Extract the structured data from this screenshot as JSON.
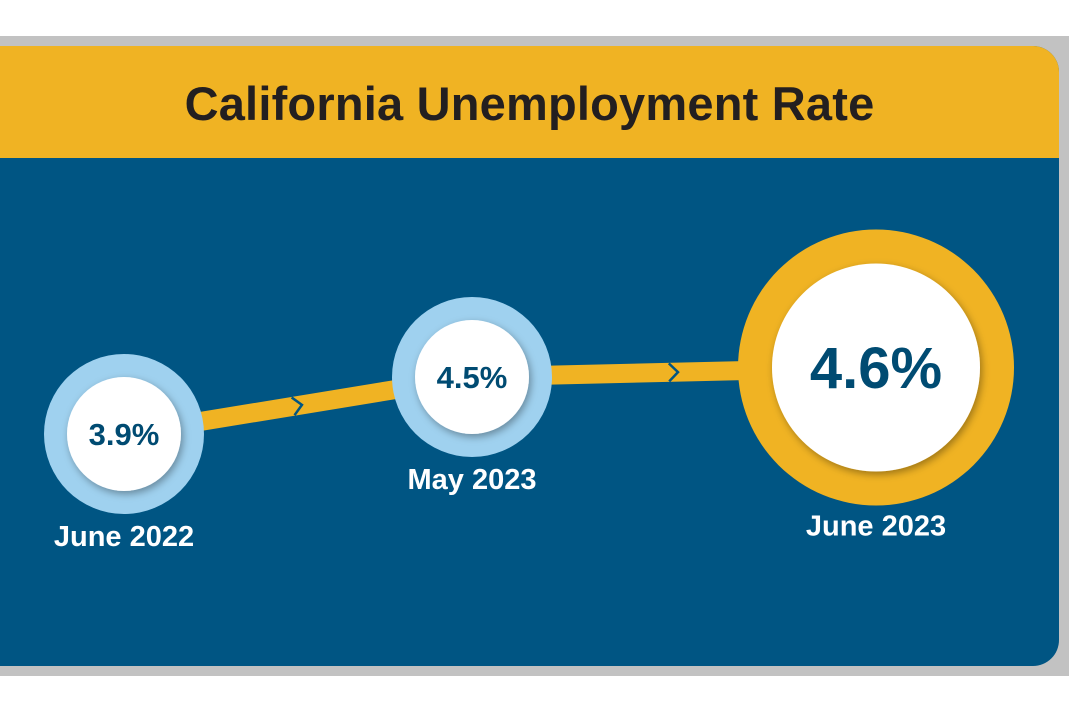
{
  "colors": {
    "banner": "#f0b323",
    "panel": "#005583",
    "title_text": "#231f20",
    "connector": "#f0b323",
    "small_ring": "#9fd1ef",
    "highlight_ring": "#f0b323",
    "value_text": "#004b72",
    "period_label": "#ffffff"
  },
  "chart_data": {
    "type": "line",
    "title": "California Unemployment Rate",
    "unit": "%",
    "categories": [
      "June 2022",
      "May 2023",
      "June 2023"
    ],
    "values": [
      3.9,
      4.5,
      4.6
    ],
    "value_labels": [
      "3.9%",
      "4.5%",
      "4.6%"
    ],
    "highlight": "June 2023"
  }
}
